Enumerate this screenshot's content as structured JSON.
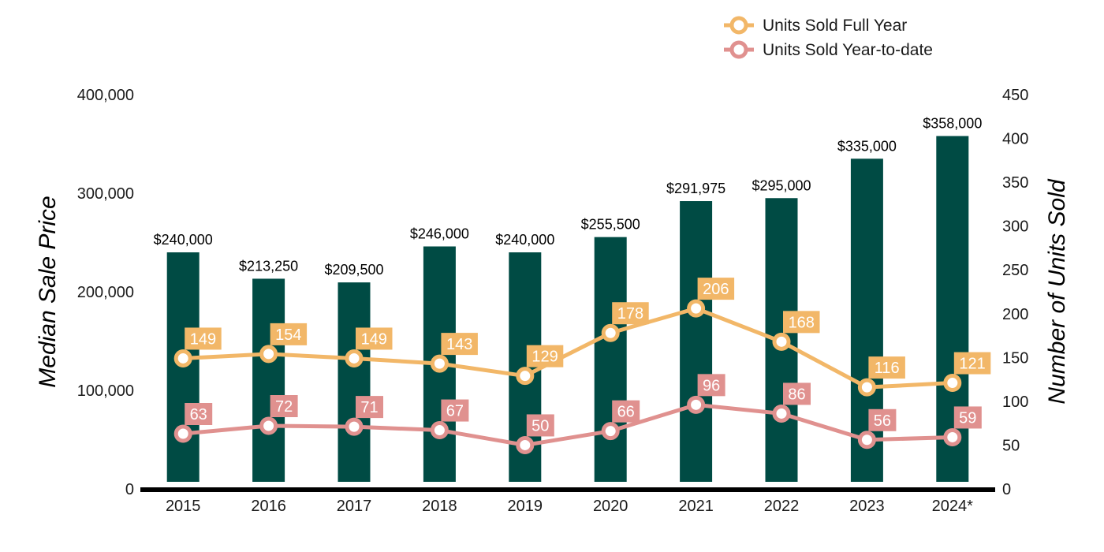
{
  "chart_data": {
    "type": "bar",
    "title": "",
    "categories": [
      "2015",
      "2016",
      "2017",
      "2018",
      "2019",
      "2020",
      "2021",
      "2022",
      "2023",
      "2024*"
    ],
    "ylabel": "Median Sale Price",
    "y2label": "Number of Units Sold",
    "ylim": [
      0,
      400000
    ],
    "y2lim": [
      0,
      450
    ],
    "yticks": [
      "0",
      "100,000",
      "200,000",
      "300,000",
      "400,000"
    ],
    "y2ticks": [
      "0",
      "50",
      "100",
      "150",
      "200",
      "250",
      "300",
      "350",
      "400",
      "450"
    ],
    "bar_series": {
      "name": "Median Sale Price",
      "values": [
        240000,
        213250,
        209500,
        246000,
        240000,
        255500,
        291975,
        295000,
        335000,
        358000
      ],
      "labels": [
        "$240,000",
        "$213,250",
        "$209,500",
        "$246,000",
        "$240,000",
        "$255,500",
        "$291,975",
        "$295,000",
        "$335,000",
        "$358,000"
      ],
      "color": "#004B44"
    },
    "line_series": [
      {
        "name": "Units Sold Full Year",
        "values": [
          149,
          154,
          149,
          143,
          129,
          178,
          206,
          168,
          116,
          121
        ],
        "labels": [
          "149",
          "154",
          "149",
          "143",
          "129",
          "178",
          "206",
          "168",
          "116",
          "121"
        ],
        "color": "#F2B768"
      },
      {
        "name": "Units Sold Year-to-date",
        "values": [
          63,
          72,
          71,
          67,
          50,
          66,
          96,
          86,
          56,
          59
        ],
        "labels": [
          "63",
          "72",
          "71",
          "67",
          "50",
          "66",
          "96",
          "86",
          "56",
          "59"
        ],
        "color": "#E0918F"
      }
    ],
    "legend_position": "top-right",
    "grid": false
  }
}
